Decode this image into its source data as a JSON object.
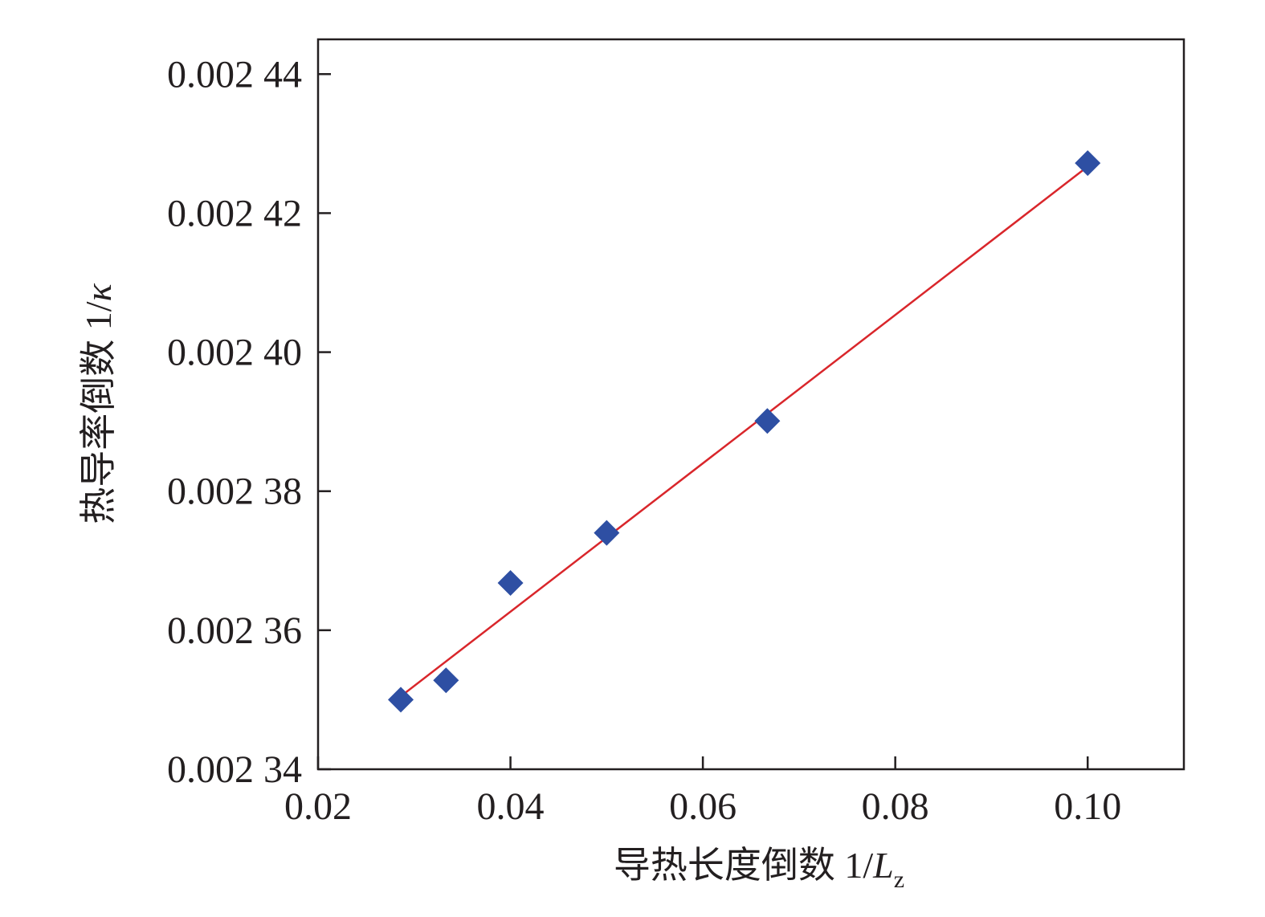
{
  "chart_data": {
    "type": "scatter",
    "title": "",
    "xlabel_text": "导热长度倒数 1/",
    "xlabel_var": "L",
    "xlabel_sub": "z",
    "ylabel_text": "热导率倒数 1/",
    "ylabel_var": "κ",
    "xlim": [
      0.02,
      0.11
    ],
    "ylim": [
      0.00234,
      0.002445
    ],
    "x_ticks": [
      0.02,
      0.04,
      0.06,
      0.08,
      0.1
    ],
    "x_tick_labels": [
      "0.02",
      "0.04",
      "0.06",
      "0.08",
      "0.10"
    ],
    "y_ticks": [
      0.00234,
      0.00236,
      0.00238,
      0.0024,
      0.00242,
      0.00244
    ],
    "y_tick_labels": [
      "0.002 34",
      "0.002 36",
      "0.002 38",
      "0.002 40",
      "0.002 42",
      "0.002 44"
    ],
    "grid": false,
    "series": [
      {
        "marker": "diamond",
        "color": "#2e4fa3",
        "x": [
          0.0286,
          0.0333,
          0.04,
          0.05,
          0.0667,
          0.1
        ],
        "y": [
          0.00235,
          0.0023528,
          0.0023668,
          0.002374,
          0.0023901,
          0.0024272
        ]
      }
    ],
    "fit_line": {
      "color": "#d9262b",
      "x": [
        0.0286,
        0.1
      ],
      "y": [
        0.0023505,
        0.0024267
      ]
    }
  }
}
